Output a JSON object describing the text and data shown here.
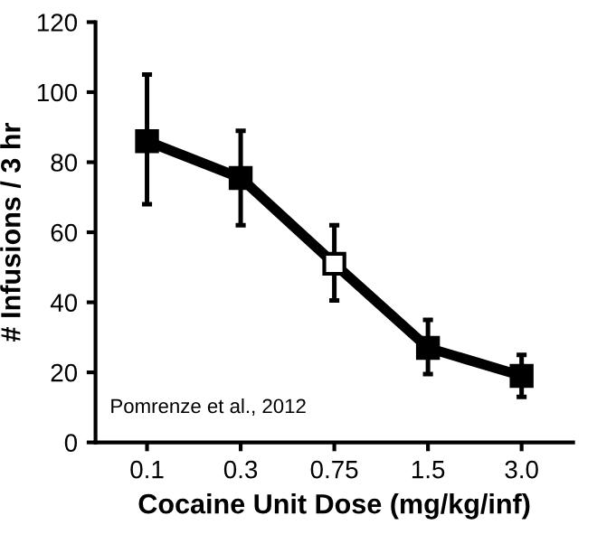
{
  "chart_data": {
    "type": "line",
    "xlabel": "Cocaine Unit Dose (mg/kg/inf)",
    "ylabel": "# Infusions / 3 hr",
    "categories": [
      "0.1",
      "0.3",
      "0.75",
      "1.5",
      "3.0"
    ],
    "series": [
      {
        "color": "#000000",
        "colors": [
          "#000000",
          "#000000",
          "#ffffff",
          "#000000",
          "#000000"
        ],
        "values": [
          86,
          75.5,
          51,
          27,
          19
        ],
        "errors": [
          [
            68,
            105
          ],
          [
            62,
            89
          ],
          [
            40.5,
            62
          ],
          [
            19.5,
            35
          ],
          [
            13,
            25
          ]
        ]
      }
    ],
    "marker": "square",
    "line_style": "solid",
    "grid": false,
    "legend": false,
    "ylim": [
      0,
      120
    ],
    "yticks": [
      0,
      20,
      40,
      60,
      80,
      100,
      120
    ],
    "annotations": [
      {
        "text": "Pomrenze et al., 2012"
      }
    ]
  }
}
